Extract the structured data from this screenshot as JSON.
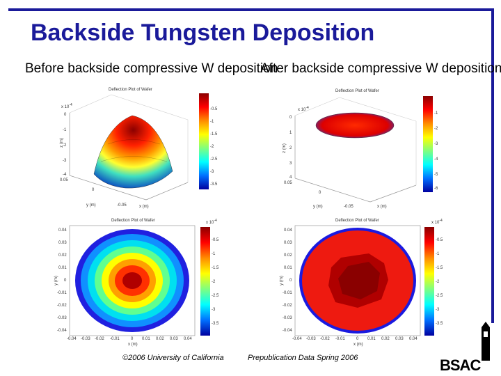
{
  "slide": {
    "title": "Backside Tungsten Deposition",
    "caption_before": "Before backside compressive W deposition",
    "caption_after": "After backside compressive W deposition"
  },
  "plots": {
    "deflection_title": "Deflection Plot of Wafer",
    "scale_3d": "x 10",
    "scale_3d_exp": "-4",
    "z_label": "z (m)",
    "y_label": "y (m)",
    "x_label": "x (m)",
    "z_ticks": [
      "0",
      "-1",
      "-2",
      "-3",
      "-4"
    ],
    "after_z_ticks": [
      "0",
      "1",
      "2",
      "3",
      "4"
    ],
    "cbar3d_ticks": [
      "-0.5",
      "-1",
      "-1.5",
      "-2",
      "-2.5",
      "-3",
      "-3.5"
    ],
    "after_cbar3d_ticks": [
      "-1",
      "-2",
      "-3",
      "-4",
      "-5",
      "-6"
    ],
    "base_ticks": [
      "0.05",
      "0",
      "-0.05"
    ],
    "cbar2d_ticks": [
      "-0.5",
      "-1",
      "-1.5",
      "-2",
      "-2.5",
      "-3",
      "-3.5"
    ],
    "after_cbar2d_ticks": [
      "-0.5",
      "-1",
      "-1.5",
      "-2",
      "-2.5",
      "-3",
      "-3.5"
    ],
    "y2d_ticks": [
      "0.04",
      "0.03",
      "0.02",
      "0.01",
      "0",
      "-0.01",
      "-0.02",
      "-0.03",
      "-0.04"
    ],
    "x2d_ticks": [
      "-0.04",
      "-0.03",
      "-0.02",
      "-0.01",
      "0",
      "0.01",
      "0.02",
      "0.03",
      "0.04"
    ],
    "cbar_scale": "x 10",
    "cbar_scale_exp": "-4"
  },
  "footer": {
    "copyright": "©2006 University of California",
    "note": "Prepublication Data Spring 2006",
    "logo": "BSAC"
  }
}
